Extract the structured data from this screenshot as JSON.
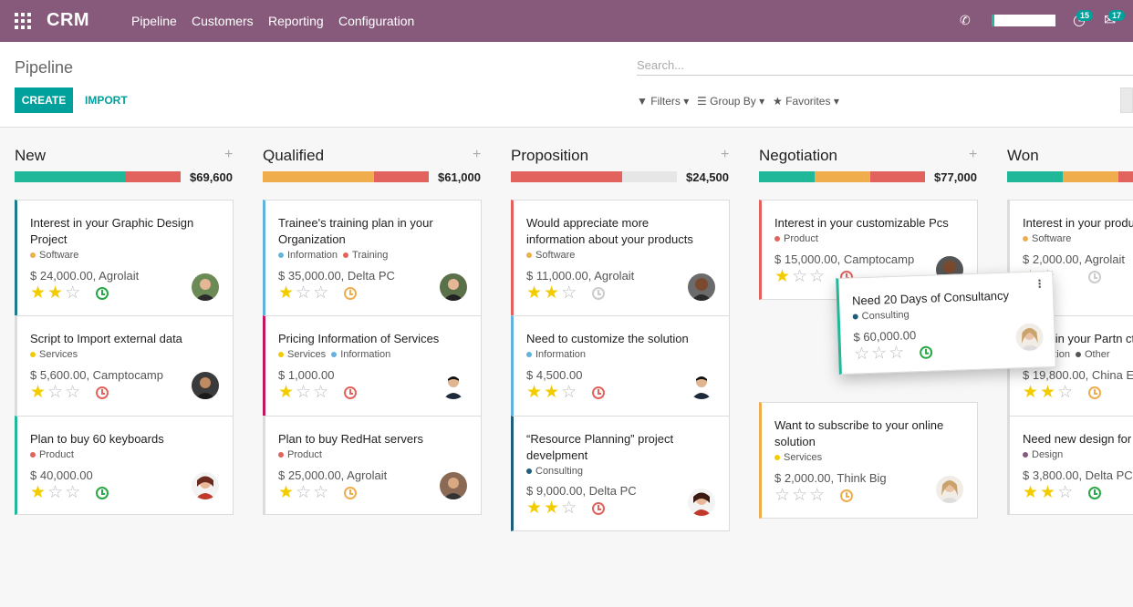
{
  "app": {
    "name": "CRM",
    "menu": [
      "Pipeline",
      "Customers",
      "Reporting",
      "Configuration"
    ],
    "badge_activities": "15",
    "badge_messages": "17"
  },
  "control": {
    "breadcrumb": "Pipeline",
    "create": "CREATE",
    "import": "IMPORT",
    "search_placeholder": "Search...",
    "filters": "Filters",
    "group_by": "Group By",
    "favorites": "Favorites"
  },
  "colors": {
    "topbar": "#875a7b",
    "accent": "#00a09d",
    "green": "#21b799",
    "orange": "#f0ad4e",
    "red": "#e2635e",
    "gray": "#e6e6e6"
  },
  "columns": [
    {
      "title": "New",
      "total": "$69,600"
    },
    {
      "title": "Qualified",
      "total": "$61,000"
    },
    {
      "title": "Proposition",
      "total": "$24,500"
    },
    {
      "title": "Negotiation",
      "total": "$77,000"
    },
    {
      "title": "Won",
      "total": ""
    }
  ],
  "cards": {
    "c1": {
      "title": "Interest in your Graphic Design Project",
      "tags": [
        "Software"
      ],
      "amount": "$ 24,000.00, Agrolait",
      "stars": 2
    },
    "c2": {
      "title": "Script to Import external data",
      "tags": [
        "Services"
      ],
      "amount": "$ 5,600.00, Camptocamp",
      "stars": 1
    },
    "c3": {
      "title": "Plan to buy 60 keyboards",
      "tags": [
        "Product"
      ],
      "amount": "$ 40,000.00",
      "stars": 1
    },
    "c4": {
      "title": "Trainee's training plan in your Organization",
      "tags": [
        "Information",
        "Training"
      ],
      "amount": "$ 35,000.00, Delta PC",
      "stars": 1
    },
    "c5": {
      "title": "Pricing Information of Services",
      "tags": [
        "Services",
        "Information"
      ],
      "amount": "$ 1,000.00",
      "stars": 1
    },
    "c6": {
      "title": "Plan to buy RedHat servers",
      "tags": [
        "Product"
      ],
      "amount": "$ 25,000.00, Agrolait",
      "stars": 1
    },
    "c7": {
      "title": "Would appreciate more information about your products",
      "tags": [
        "Software"
      ],
      "amount": "$ 11,000.00, Agrolait",
      "stars": 2
    },
    "c8": {
      "title": "Need to customize the solution",
      "tags": [
        "Information"
      ],
      "amount": "$ 4,500.00",
      "stars": 2
    },
    "c9": {
      "title": "“Resource Planning” project develpment",
      "tags": [
        "Consulting"
      ],
      "amount": "$ 9,000.00, Delta PC",
      "stars": 2
    },
    "c10": {
      "title": "Interest in your customizable Pcs",
      "tags": [
        "Product"
      ],
      "amount": "$ 15,000.00, Camptocamp",
      "stars": 1
    },
    "c11": {
      "title": "Want to subscribe to your online solution",
      "tags": [
        "Services"
      ],
      "amount": "$ 2,000.00, Think Big",
      "stars": 0
    },
    "c12": {
      "title": "Interest in your produ",
      "tags": [
        "Software"
      ],
      "amount": "$ 2,000.00, Agrolait",
      "stars": 1
    },
    "c13": {
      "title": "st in your Partn ct",
      "tags": [
        "nation",
        "Other"
      ],
      "amount": "$ 19,800.00, China Ex",
      "stars": 2
    },
    "c14": {
      "title": "Need new design for",
      "tags": [
        "Design"
      ],
      "amount": "$ 3,800.00, Delta PC",
      "stars": 2
    },
    "drag": {
      "title": "Need 20 Days of Consultancy",
      "tags": [
        "Consulting"
      ],
      "amount": "$ 60,000.00",
      "stars": 0
    }
  }
}
